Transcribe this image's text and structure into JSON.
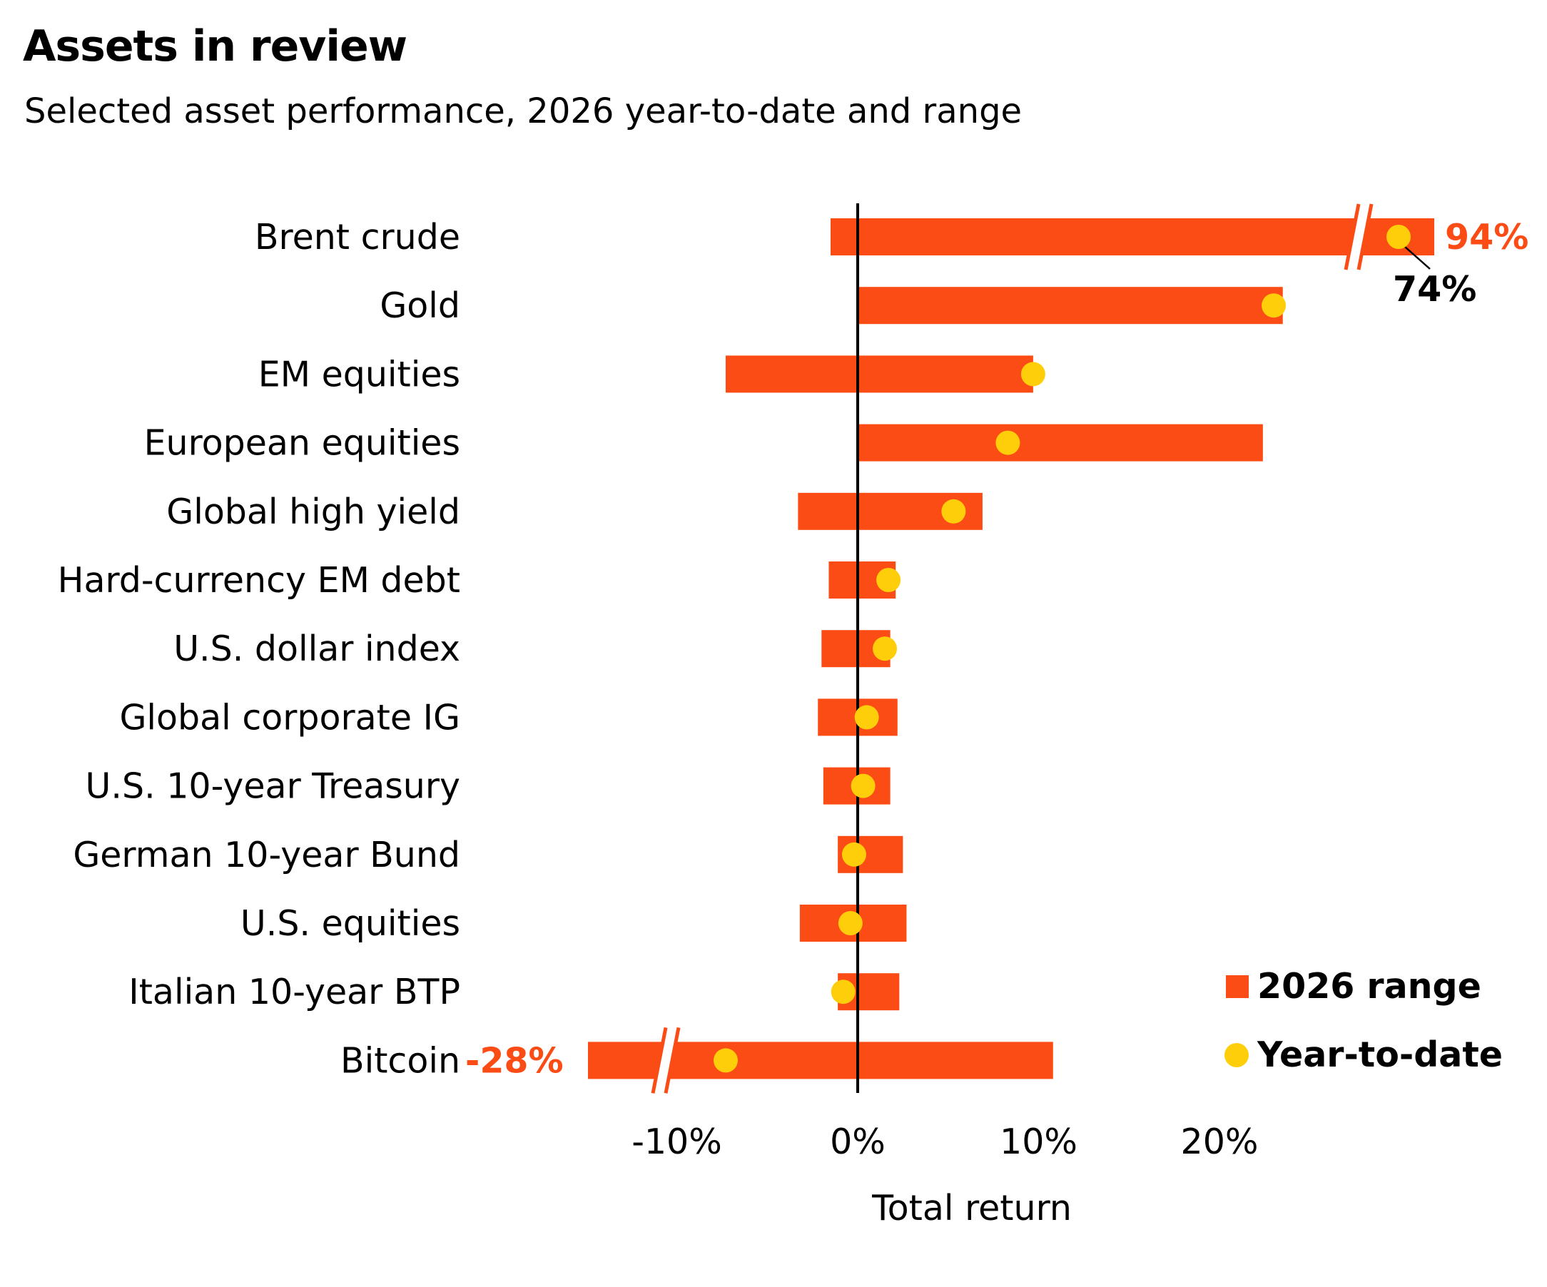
{
  "title": "Assets in review",
  "subtitle": "Selected asset performance, 2026 year-to-date and range",
  "colors": {
    "range": "#FC4C15",
    "ytd": "#FFCE0A",
    "zero_line": "#000000",
    "text": "#000000"
  },
  "chart_data": {
    "type": "range-dot",
    "xlabel": "Total return",
    "xlim": [
      -15,
      32
    ],
    "x_ticks": [
      {
        "value": -10,
        "label": "-10%"
      },
      {
        "value": 0,
        "label": "0%"
      },
      {
        "value": 10,
        "label": "10%"
      },
      {
        "value": 20,
        "label": "20%"
      }
    ],
    "grid": false,
    "legend": {
      "position": "bottom-right",
      "items": [
        {
          "label": "2026 range",
          "marker": "square"
        },
        {
          "label": "Year-to-date",
          "marker": "circle"
        }
      ]
    },
    "series": [
      {
        "name": "2026 range",
        "kind": "range"
      },
      {
        "name": "Year-to-date",
        "kind": "point"
      }
    ],
    "categories": [
      {
        "label": "Brent crude",
        "min": -1.5,
        "max": 94,
        "ytd": 74,
        "max_label": "94%",
        "ytd_label": "74%",
        "axis_break": "high"
      },
      {
        "label": "Gold",
        "min": 0,
        "max": 23.5,
        "ytd": 23
      },
      {
        "label": "EM equities",
        "min": -7.3,
        "max": 9.7,
        "ytd": 9.7
      },
      {
        "label": "European equities",
        "min": 0,
        "max": 22.4,
        "ytd": 8.3
      },
      {
        "label": "Global high yield",
        "min": -3.3,
        "max": 6.9,
        "ytd": 5.3
      },
      {
        "label": "Hard-currency EM debt",
        "min": -1.6,
        "max": 2.1,
        "ytd": 1.7
      },
      {
        "label": "U.S. dollar index",
        "min": -2.0,
        "max": 1.8,
        "ytd": 1.5
      },
      {
        "label": "Global corporate IG",
        "min": -2.2,
        "max": 2.2,
        "ytd": 0.5
      },
      {
        "label": "U.S. 10-year Treasury",
        "min": -1.9,
        "max": 1.8,
        "ytd": 0.3
      },
      {
        "label": "German 10-year Bund",
        "min": -1.1,
        "max": 2.5,
        "ytd": -0.2
      },
      {
        "label": "U.S. equities",
        "min": -3.2,
        "max": 2.7,
        "ytd": -0.4
      },
      {
        "label": "Italian 10-year BTP",
        "min": -1.1,
        "max": 2.3,
        "ytd": -0.8
      },
      {
        "label": "Bitcoin",
        "min": -28,
        "max": 10.8,
        "ytd": -28,
        "min_label": "-28%",
        "axis_break": "low"
      }
    ]
  }
}
